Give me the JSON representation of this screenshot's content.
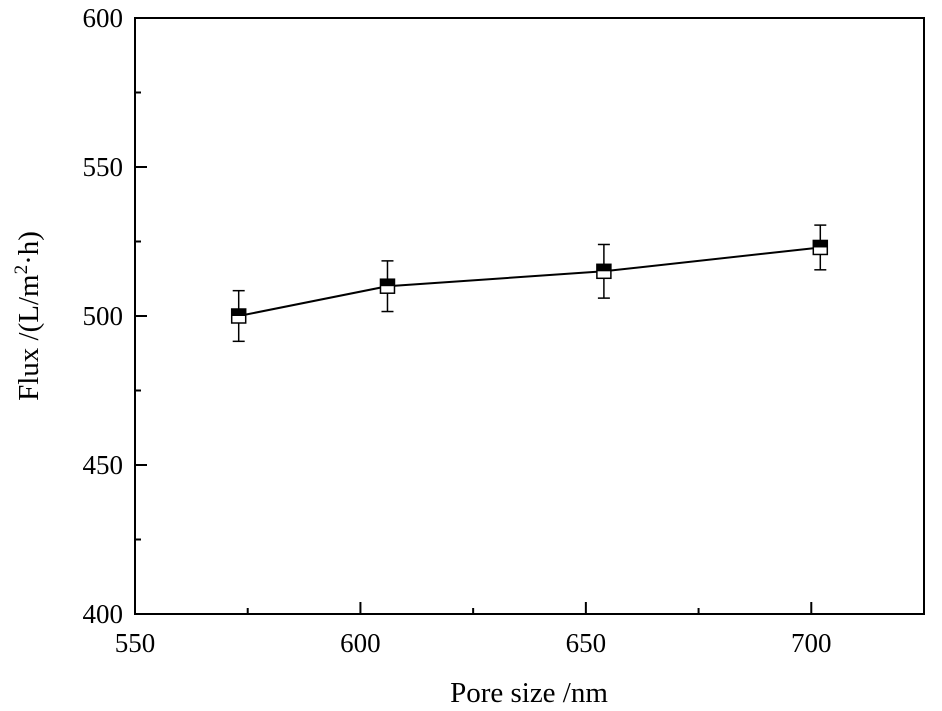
{
  "chart_data": {
    "type": "scatter",
    "title": "",
    "xlabel": "Pore size /nm",
    "ylabel_parts": {
      "main": "Flux /(L/m",
      "sup": "2",
      "tail": "·h)"
    },
    "xlim": [
      550,
      725
    ],
    "ylim": [
      400,
      600
    ],
    "xticks": [
      550,
      600,
      650,
      700
    ],
    "xticks_minor": [
      575,
      625,
      675
    ],
    "yticks": [
      400,
      450,
      500,
      550,
      600
    ],
    "yticks_minor": [
      425,
      475,
      525,
      575
    ],
    "grid": false,
    "legend": "none",
    "colors": {
      "axis": "#000000",
      "line": "#000000",
      "marker": "#000000"
    },
    "series": [
      {
        "marker": "half-filled-square",
        "points": [
          {
            "x": 573,
            "y": 500,
            "err": 8.5
          },
          {
            "x": 606,
            "y": 510,
            "err": 8.5
          },
          {
            "x": 654,
            "y": 515,
            "err": 9
          },
          {
            "x": 702,
            "y": 523,
            "err": 7.5
          }
        ]
      }
    ]
  }
}
